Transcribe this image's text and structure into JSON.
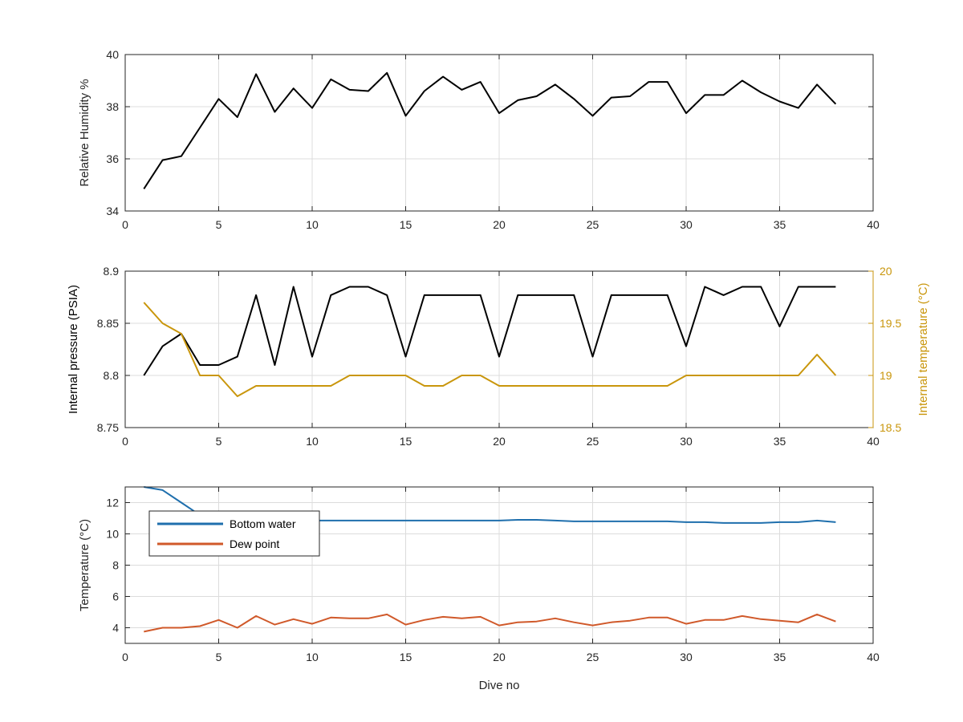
{
  "chart_data": [
    {
      "type": "line",
      "xlabel": "",
      "ylabel": "Relative Humidity %",
      "xlim": [
        0,
        40
      ],
      "ylim": [
        34,
        40
      ],
      "xticks": [
        0,
        5,
        10,
        15,
        20,
        25,
        30,
        35,
        40
      ],
      "yticks": [
        34,
        36,
        38,
        40
      ],
      "grid": true,
      "series": [
        {
          "color": "#000000",
          "x": [
            1,
            2,
            3,
            4,
            5,
            6,
            7,
            8,
            9,
            10,
            11,
            12,
            13,
            14,
            15,
            16,
            17,
            18,
            19,
            20,
            21,
            22,
            23,
            24,
            25,
            26,
            27,
            28,
            29,
            30,
            31,
            32,
            33,
            34,
            35,
            36,
            37,
            38
          ],
          "values": [
            34.85,
            35.95,
            36.1,
            37.2,
            38.3,
            37.6,
            39.25,
            37.8,
            38.7,
            37.95,
            39.05,
            38.65,
            38.6,
            39.3,
            37.65,
            38.6,
            39.15,
            38.65,
            38.95,
            37.75,
            38.25,
            38.4,
            38.85,
            38.3,
            37.65,
            38.35,
            38.4,
            38.95,
            38.95,
            37.75,
            38.45,
            38.45,
            39.0,
            38.55,
            38.2,
            37.95,
            38.85,
            38.1
          ]
        }
      ]
    },
    {
      "type": "line",
      "xlabel": "",
      "ylabel": "Internal pressure (PSIA)",
      "ylabel_right": "Internal temperature (°C)",
      "xlim": [
        0,
        40
      ],
      "ylim": [
        8.75,
        8.9
      ],
      "ylim_right": [
        18.5,
        20
      ],
      "xticks": [
        0,
        5,
        10,
        15,
        20,
        25,
        30,
        35,
        40
      ],
      "yticks": [
        "8.75",
        "8.8",
        "8.85",
        "8.9"
      ],
      "yticks_right": [
        "18.5",
        "19",
        "19.5",
        "20"
      ],
      "grid": true,
      "series": [
        {
          "color": "#000000",
          "axis": "left",
          "x": [
            1,
            2,
            3,
            4,
            5,
            6,
            7,
            8,
            9,
            10,
            11,
            12,
            13,
            14,
            15,
            16,
            17,
            18,
            19,
            20,
            21,
            22,
            23,
            24,
            25,
            26,
            27,
            28,
            29,
            30,
            31,
            32,
            33,
            34,
            35,
            36,
            37,
            38
          ],
          "values": [
            8.8,
            8.828,
            8.84,
            8.81,
            8.81,
            8.818,
            8.877,
            8.81,
            8.885,
            8.818,
            8.877,
            8.885,
            8.885,
            8.877,
            8.818,
            8.877,
            8.877,
            8.877,
            8.877,
            8.818,
            8.877,
            8.877,
            8.877,
            8.877,
            8.818,
            8.877,
            8.877,
            8.877,
            8.877,
            8.828,
            8.885,
            8.877,
            8.885,
            8.885,
            8.847,
            8.885,
            8.885,
            8.885
          ]
        },
        {
          "color": "#c9960c",
          "axis": "right",
          "x": [
            1,
            2,
            3,
            4,
            5,
            6,
            7,
            8,
            9,
            10,
            11,
            12,
            13,
            14,
            15,
            16,
            17,
            18,
            19,
            20,
            21,
            22,
            23,
            24,
            25,
            26,
            27,
            28,
            29,
            30,
            31,
            32,
            33,
            34,
            35,
            36,
            37,
            38
          ],
          "values": [
            19.7,
            19.5,
            19.4,
            19.0,
            19.0,
            18.8,
            18.9,
            18.9,
            18.9,
            18.9,
            18.9,
            19.0,
            19.0,
            19.0,
            19.0,
            18.9,
            18.9,
            19.0,
            19.0,
            18.9,
            18.9,
            18.9,
            18.9,
            18.9,
            18.9,
            18.9,
            18.9,
            18.9,
            18.9,
            19.0,
            19.0,
            19.0,
            19.0,
            19.0,
            19.0,
            19.0,
            19.2,
            19.0
          ]
        }
      ]
    },
    {
      "type": "line",
      "xlabel": "Dive no",
      "ylabel": "Temperature (°C)",
      "xlim": [
        0,
        40
      ],
      "ylim": [
        3,
        13
      ],
      "xticks": [
        0,
        5,
        10,
        15,
        20,
        25,
        30,
        35,
        40
      ],
      "yticks": [
        4,
        6,
        8,
        10,
        12
      ],
      "grid": true,
      "legend": "top-left",
      "series": [
        {
          "name": "Bottom water",
          "color": "#1f6fad",
          "x": [
            1,
            2,
            3,
            4,
            5,
            6,
            7,
            8,
            9,
            10,
            11,
            12,
            13,
            14,
            15,
            16,
            17,
            18,
            19,
            20,
            21,
            22,
            23,
            24,
            25,
            26,
            27,
            28,
            29,
            30,
            31,
            32,
            33,
            34,
            35,
            36,
            37,
            38
          ],
          "values": [
            13.0,
            12.8,
            12.0,
            11.2,
            10.9,
            10.85,
            10.85,
            10.85,
            10.85,
            10.85,
            10.85,
            10.85,
            10.85,
            10.85,
            10.85,
            10.85,
            10.85,
            10.85,
            10.85,
            10.85,
            10.9,
            10.9,
            10.85,
            10.8,
            10.8,
            10.8,
            10.8,
            10.8,
            10.8,
            10.75,
            10.75,
            10.7,
            10.7,
            10.7,
            10.75,
            10.75,
            10.85,
            10.75
          ]
        },
        {
          "name": "Dew point",
          "color": "#d0592a",
          "x": [
            1,
            2,
            3,
            4,
            5,
            6,
            7,
            8,
            9,
            10,
            11,
            12,
            13,
            14,
            15,
            16,
            17,
            18,
            19,
            20,
            21,
            22,
            23,
            24,
            25,
            26,
            27,
            28,
            29,
            30,
            31,
            32,
            33,
            34,
            35,
            36,
            37,
            38
          ],
          "values": [
            3.75,
            4.0,
            4.0,
            4.1,
            4.5,
            4.0,
            4.75,
            4.2,
            4.55,
            4.25,
            4.65,
            4.6,
            4.6,
            4.85,
            4.2,
            4.5,
            4.7,
            4.6,
            4.7,
            4.15,
            4.35,
            4.4,
            4.6,
            4.35,
            4.15,
            4.35,
            4.45,
            4.65,
            4.65,
            4.25,
            4.5,
            4.5,
            4.75,
            4.55,
            4.45,
            4.35,
            4.85,
            4.4
          ]
        }
      ]
    }
  ]
}
